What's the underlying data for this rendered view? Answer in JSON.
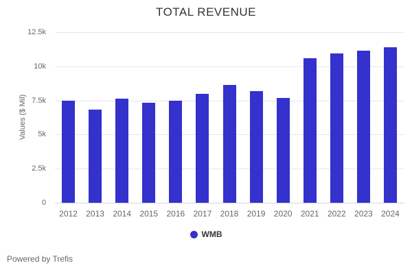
{
  "title": "TOTAL REVENUE",
  "footer": "Powered by Trefis",
  "legend": {
    "items": [
      {
        "label": "WMB",
        "marker": "circle-icon",
        "color": "#3431cd"
      }
    ],
    "position": "bottom"
  },
  "colors": {
    "bar": "#3431cd",
    "grid": "#e6e6e6",
    "axis_line": "#ccd6eb",
    "title_text": "#333333",
    "label_text": "#666666"
  },
  "chart_data": {
    "type": "bar",
    "title": "TOTAL REVENUE",
    "xlabel": "",
    "ylabel": "Values ($ Mil)",
    "categories": [
      "2012",
      "2013",
      "2014",
      "2015",
      "2016",
      "2017",
      "2018",
      "2019",
      "2020",
      "2021",
      "2022",
      "2023",
      "2024"
    ],
    "series": [
      {
        "name": "WMB",
        "color": "#3431cd",
        "values": [
          7500,
          6850,
          7650,
          7350,
          7500,
          8000,
          8650,
          8200,
          7700,
          10600,
          10950,
          11150,
          11400
        ]
      }
    ],
    "ylim": [
      0,
      12500
    ],
    "yticks": [
      0,
      2500,
      5000,
      7500,
      10000,
      12500
    ],
    "ytick_labels": [
      "0",
      "2.5k",
      "5k",
      "7.5k",
      "10k",
      "12.5k"
    ],
    "grid": true,
    "legend_position": "bottom"
  }
}
